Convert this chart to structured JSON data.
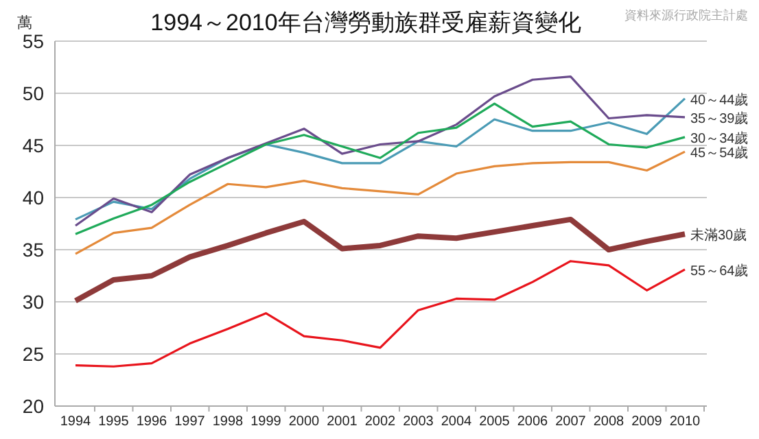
{
  "chart_data": {
    "type": "line",
    "title": "1994～2010年台灣勞動族群受雇薪資變化",
    "ylabel": "萬",
    "annotations": [
      "資料來源行政院主計處"
    ],
    "categories": [
      "1994",
      "1995",
      "1996",
      "1997",
      "1998",
      "1999",
      "2000",
      "2001",
      "2002",
      "2003",
      "2004",
      "2005",
      "2006",
      "2007",
      "2008",
      "2009",
      "2010"
    ],
    "ylim": [
      20,
      55
    ],
    "yticks": [
      20,
      25,
      30,
      35,
      40,
      45,
      50,
      55
    ],
    "grid": "y",
    "legend": false,
    "marker": "none",
    "line_style": "solid",
    "series": [
      {
        "name": "40～44歲",
        "color": "#4a9bb5",
        "values": [
          37.9,
          39.6,
          38.9,
          41.8,
          43.8,
          45.1,
          44.3,
          43.3,
          43.3,
          45.4,
          44.9,
          47.5,
          46.4,
          46.4,
          47.2,
          46.1,
          49.5
        ]
      },
      {
        "name": "35～39歲",
        "color": "#6a4c8c",
        "values": [
          37.3,
          39.9,
          38.6,
          42.2,
          43.8,
          45.2,
          46.6,
          44.2,
          45.1,
          45.4,
          47.0,
          49.7,
          51.3,
          51.6,
          47.6,
          47.9,
          47.7
        ]
      },
      {
        "name": "30～34歲",
        "color": "#1faa5a",
        "values": [
          36.5,
          38.0,
          39.3,
          41.5,
          43.3,
          45.1,
          46.0,
          44.9,
          43.8,
          46.2,
          46.7,
          49.0,
          46.8,
          47.3,
          45.1,
          44.8,
          45.8
        ]
      },
      {
        "name": "45～54歲",
        "color": "#e48a3a",
        "values": [
          34.6,
          36.6,
          37.1,
          39.3,
          41.3,
          41.0,
          41.6,
          40.9,
          40.6,
          40.3,
          42.3,
          43.0,
          43.3,
          43.4,
          43.4,
          42.6,
          44.4
        ]
      },
      {
        "name": "未滿30歲",
        "color": "#8e3a3a",
        "values": [
          30.1,
          32.1,
          32.5,
          34.3,
          35.4,
          36.6,
          37.7,
          35.1,
          35.4,
          36.3,
          36.1,
          36.7,
          37.3,
          37.9,
          35.0,
          35.8,
          36.5
        ]
      },
      {
        "name": "55～64歲",
        "color": "#e8141c",
        "values": [
          23.9,
          23.8,
          24.1,
          26.0,
          27.4,
          28.9,
          26.7,
          26.3,
          25.6,
          29.2,
          30.3,
          30.2,
          31.9,
          33.9,
          33.5,
          31.1,
          33.1
        ]
      }
    ]
  }
}
